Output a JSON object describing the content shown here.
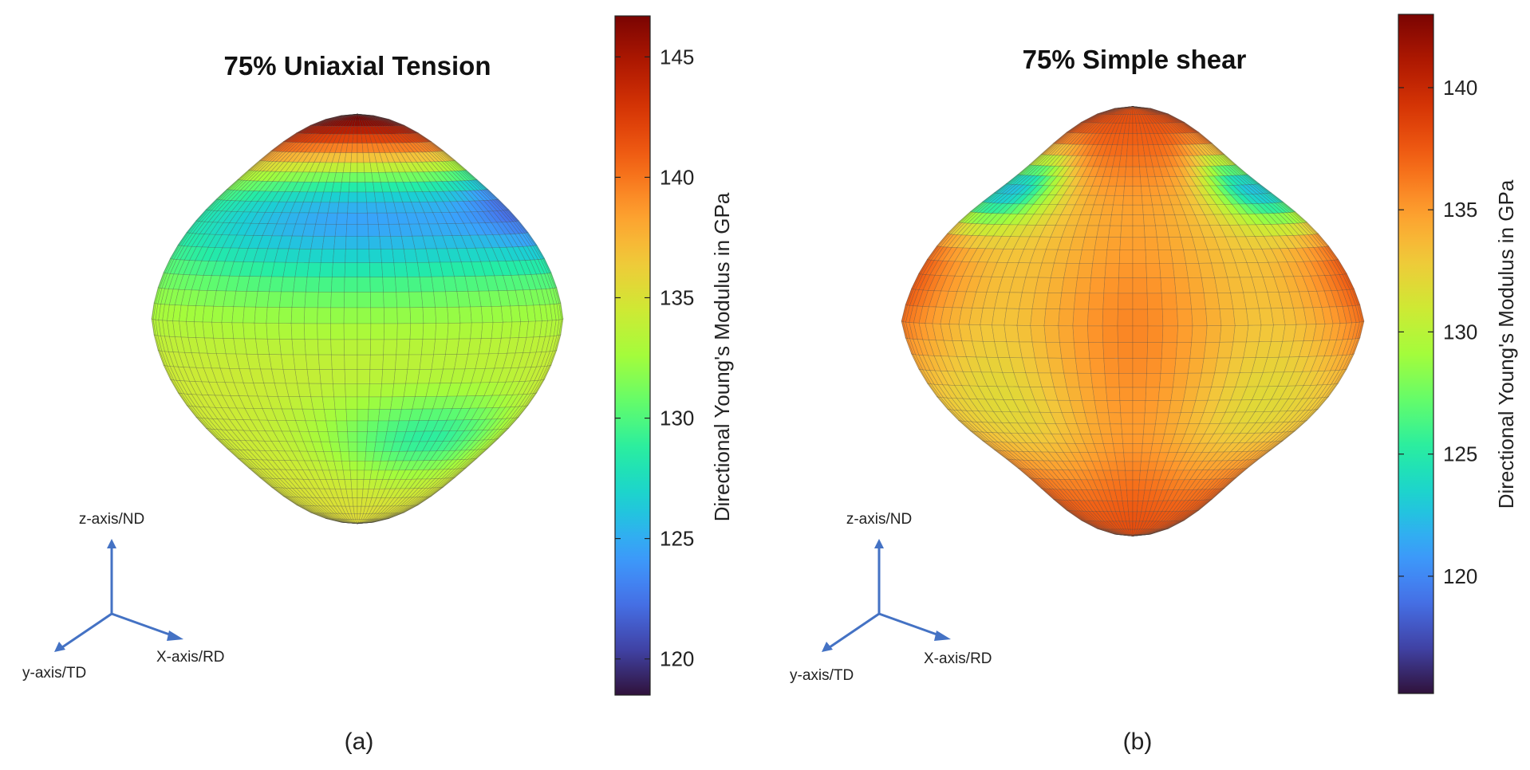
{
  "colormap": [
    "#30123b",
    "#4145ab",
    "#4675ed",
    "#39a2fc",
    "#1bcfd4",
    "#24eca6",
    "#61fc6c",
    "#a4fc3b",
    "#d1e834",
    "#f3c63a",
    "#fe9b2d",
    "#f36315",
    "#d93806",
    "#b11901",
    "#7a0402"
  ],
  "mesh_color": "#3a3a3a",
  "axis_color": "#4472c4",
  "panels": [
    {
      "id": "a",
      "title": "75% Uniaxial Tension",
      "caption": "(a)",
      "colorbar": {
        "label": "Directional Young's Modulus in GPa",
        "min": 118.5,
        "max": 146.7,
        "ticks": [
          "120",
          "125",
          "130",
          "135",
          "140",
          "145"
        ]
      },
      "axes": {
        "z": "z-axis/ND",
        "x": "X-axis/RD",
        "y": "y-axis/TD"
      }
    },
    {
      "id": "b",
      "title": "75% Simple shear",
      "caption": "(b)",
      "colorbar": {
        "label": "Directional Young's Modulus in GPa",
        "min": 115.2,
        "max": 143.0,
        "ticks": [
          "120",
          "125",
          "130",
          "135",
          "140"
        ]
      },
      "axes": {
        "z": "z-axis/ND",
        "x": "X-axis/RD",
        "y": "y-axis/TD"
      }
    }
  ]
}
